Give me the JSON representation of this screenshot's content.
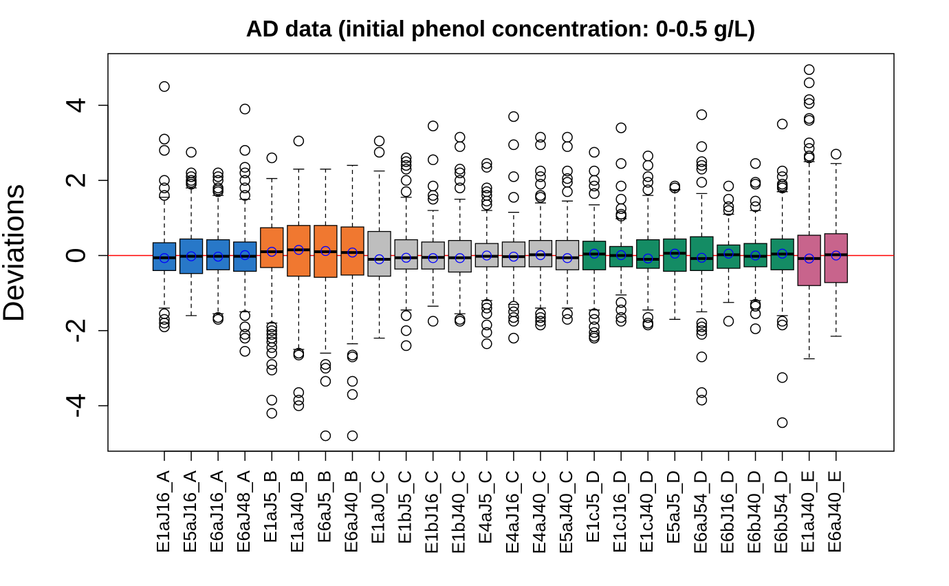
{
  "chart_data": {
    "type": "boxplot",
    "title": "AD data (initial phenol concentration: 0-0.5 g/L)",
    "ylabel": "Deviations",
    "xlabel": "",
    "ylim": [
      -5.2,
      5.4
    ],
    "yticks": [
      -4,
      -2,
      0,
      2,
      4
    ],
    "ytick_labels": [
      "-4",
      "-2",
      "0",
      "2",
      "4"
    ],
    "reference_line": {
      "y": 0,
      "color": "#ff0000"
    },
    "mean_marker_color": "#0000ff",
    "group_colors": {
      "A": "#2878c8",
      "B": "#f07830",
      "C": "#bebebe",
      "D": "#148c64",
      "E": "#c8648c"
    },
    "boxes": [
      {
        "label": "E1aJ16_A",
        "group": "A",
        "q1": -0.4,
        "median": -0.06,
        "q3": 0.34,
        "whisker_low": -1.4,
        "whisker_high": 1.55,
        "mean": -0.07,
        "outliers": [
          4.5,
          3.1,
          2.8,
          2.0,
          1.8,
          1.6,
          -1.55,
          -1.7,
          -1.8,
          -1.9
        ]
      },
      {
        "label": "E5aJ16_A",
        "group": "A",
        "q1": -0.48,
        "median": -0.02,
        "q3": 0.44,
        "whisker_low": -1.6,
        "whisker_high": 1.8,
        "mean": -0.02,
        "outliers": [
          2.75,
          2.2,
          2.1,
          2.0,
          1.95,
          1.9
        ]
      },
      {
        "label": "E6aJ16_A",
        "group": "A",
        "q1": -0.38,
        "median": -0.02,
        "q3": 0.42,
        "whisker_low": -1.55,
        "whisker_high": 1.6,
        "mean": -0.03,
        "outliers": [
          2.2,
          2.1,
          2.0,
          1.8,
          1.75,
          1.7,
          -1.65,
          -1.7
        ]
      },
      {
        "label": "E6aJ48_A",
        "group": "A",
        "q1": -0.42,
        "median": -0.02,
        "q3": 0.36,
        "whisker_low": -1.5,
        "whisker_high": 1.5,
        "mean": 0.01,
        "outliers": [
          3.9,
          2.8,
          2.35,
          2.2,
          2.0,
          1.8,
          1.6,
          -1.6,
          -1.9,
          -2.1,
          -2.2,
          -2.55
        ]
      },
      {
        "label": "E1aJ5_B",
        "group": "B",
        "q1": -0.32,
        "median": 0.1,
        "q3": 0.74,
        "whisker_low": -1.8,
        "whisker_high": 2.05,
        "mean": 0.1,
        "outliers": [
          2.6,
          -1.9,
          -2.0,
          -2.1,
          -2.2,
          -2.3,
          -2.45,
          -2.6,
          -2.9,
          -3.05,
          -3.85,
          -4.2
        ]
      },
      {
        "label": "E1aJ40_B",
        "group": "B",
        "q1": -0.55,
        "median": 0.15,
        "q3": 0.8,
        "whisker_low": -2.5,
        "whisker_high": 2.3,
        "mean": 0.15,
        "outliers": [
          3.05,
          -2.6,
          -2.65,
          -3.65,
          -3.85,
          -4.0
        ]
      },
      {
        "label": "E6aJ5_B",
        "group": "B",
        "q1": -0.58,
        "median": 0.1,
        "q3": 0.8,
        "whisker_low": -2.6,
        "whisker_high": 2.3,
        "mean": 0.12,
        "outliers": [
          -2.9,
          -3.0,
          -3.35,
          -4.8
        ]
      },
      {
        "label": "E6aJ40_B",
        "group": "B",
        "q1": -0.52,
        "median": 0.08,
        "q3": 0.76,
        "whisker_low": -2.35,
        "whisker_high": 2.4,
        "mean": 0.08,
        "outliers": [
          -2.65,
          -2.7,
          -3.35,
          -3.7,
          -4.8
        ]
      },
      {
        "label": "E1aJ0_C",
        "group": "C",
        "q1": -0.55,
        "median": -0.1,
        "q3": 0.64,
        "whisker_low": -2.2,
        "whisker_high": 2.25,
        "mean": -0.1,
        "outliers": [
          3.05,
          2.75
        ]
      },
      {
        "label": "E1bJ5_C",
        "group": "C",
        "q1": -0.36,
        "median": -0.06,
        "q3": 0.42,
        "whisker_low": -1.45,
        "whisker_high": 1.55,
        "mean": -0.06,
        "outliers": [
          2.6,
          2.5,
          2.4,
          2.3,
          2.0,
          1.7,
          -1.6,
          -2.0,
          -2.4
        ]
      },
      {
        "label": "E1bJ16_C",
        "group": "C",
        "q1": -0.36,
        "median": -0.05,
        "q3": 0.36,
        "whisker_low": -1.35,
        "whisker_high": 1.2,
        "mean": -0.07,
        "outliers": [
          3.45,
          2.55,
          1.85,
          1.6,
          1.5,
          -1.75
        ]
      },
      {
        "label": "E1bJ40_C",
        "group": "C",
        "q1": -0.44,
        "median": -0.06,
        "q3": 0.4,
        "whisker_low": -1.55,
        "whisker_high": 1.5,
        "mean": -0.07,
        "outliers": [
          3.15,
          2.9,
          2.3,
          2.2,
          2.0,
          1.8,
          -1.7,
          -1.75
        ]
      },
      {
        "label": "E4aJ5_C",
        "group": "C",
        "q1": -0.3,
        "median": -0.02,
        "q3": 0.32,
        "whisker_low": -1.2,
        "whisker_high": 1.2,
        "mean": 0.0,
        "outliers": [
          2.45,
          2.35,
          1.8,
          1.7,
          1.6,
          1.45,
          1.35,
          -1.3,
          -1.4,
          -1.55,
          -1.85,
          -2.05,
          -2.35
        ]
      },
      {
        "label": "E4aJ16_C",
        "group": "C",
        "q1": -0.3,
        "median": -0.03,
        "q3": 0.36,
        "whisker_low": -1.3,
        "whisker_high": 1.15,
        "mean": -0.03,
        "outliers": [
          3.7,
          2.95,
          2.1,
          1.55,
          -1.35,
          -1.5,
          -1.65,
          -1.75,
          -2.2
        ]
      },
      {
        "label": "E4aJ40_C",
        "group": "C",
        "q1": -0.3,
        "median": 0.02,
        "q3": 0.4,
        "whisker_low": -1.4,
        "whisker_high": 1.4,
        "mean": 0.01,
        "outliers": [
          3.15,
          2.95,
          2.25,
          2.1,
          1.9,
          1.6,
          1.55,
          -1.55,
          -1.65,
          -1.75,
          -1.85
        ]
      },
      {
        "label": "E5aJ40_C",
        "group": "C",
        "q1": -0.38,
        "median": -0.06,
        "q3": 0.4,
        "whisker_low": -1.4,
        "whisker_high": 1.45,
        "mean": -0.07,
        "outliers": [
          3.15,
          2.9,
          2.25,
          2.05,
          1.95,
          1.7,
          -1.55,
          -1.7
        ]
      },
      {
        "label": "E1cJ5_D",
        "group": "D",
        "q1": -0.38,
        "median": 0.04,
        "q3": 0.38,
        "whisker_low": -1.45,
        "whisker_high": 1.35,
        "mean": 0.05,
        "outliers": [
          2.75,
          2.25,
          2.0,
          1.85,
          1.65,
          -1.55,
          -1.7,
          -1.9,
          -2.05,
          -2.15,
          -2.2
        ]
      },
      {
        "label": "E1cJ16_D",
        "group": "D",
        "q1": -0.3,
        "median": 0.0,
        "q3": 0.24,
        "whisker_low": -1.05,
        "whisker_high": 0.98,
        "mean": 0.01,
        "outliers": [
          3.4,
          2.45,
          1.85,
          1.5,
          1.25,
          1.1,
          1.05,
          -1.25,
          -1.45,
          -1.65,
          -1.75
        ]
      },
      {
        "label": "E1cJ40_D",
        "group": "D",
        "q1": -0.34,
        "median": -0.1,
        "q3": 0.42,
        "whisker_low": -1.45,
        "whisker_high": 1.6,
        "mean": -0.08,
        "outliers": [
          2.65,
          2.4,
          2.1,
          1.95,
          1.75,
          -1.65,
          -1.8,
          -1.85
        ]
      },
      {
        "label": "E5aJ5_D",
        "group": "D",
        "q1": -0.42,
        "median": 0.06,
        "q3": 0.44,
        "whisker_low": -1.7,
        "whisker_high": 1.75,
        "mean": 0.05,
        "outliers": [
          1.85,
          1.8
        ]
      },
      {
        "label": "E6aJ54_D",
        "group": "D",
        "q1": -0.4,
        "median": -0.08,
        "q3": 0.5,
        "whisker_low": -1.5,
        "whisker_high": 1.65,
        "mean": -0.06,
        "outliers": [
          3.75,
          2.9,
          2.5,
          2.4,
          2.3,
          1.95,
          -1.8,
          -1.9,
          -2.0,
          -2.1,
          -2.7,
          -3.65,
          -3.85
        ]
      },
      {
        "label": "E6bJ16_D",
        "group": "D",
        "q1": -0.34,
        "median": 0.02,
        "q3": 0.28,
        "whisker_low": -1.25,
        "whisker_high": 1.1,
        "mean": 0.05,
        "outliers": [
          1.85,
          1.5,
          1.3,
          1.2,
          -1.75
        ]
      },
      {
        "label": "E6bJ40_D",
        "group": "D",
        "q1": -0.3,
        "median": -0.02,
        "q3": 0.32,
        "whisker_low": -1.2,
        "whisker_high": 1.2,
        "mean": 0.0,
        "outliers": [
          2.45,
          1.95,
          1.9,
          1.45,
          1.3,
          -1.3,
          -1.35,
          -1.55,
          -1.95
        ]
      },
      {
        "label": "E6bJ54_D",
        "group": "D",
        "q1": -0.38,
        "median": 0.04,
        "q3": 0.44,
        "whisker_low": -1.6,
        "whisker_high": 1.7,
        "mean": 0.05,
        "outliers": [
          3.5,
          2.25,
          2.1,
          1.9,
          1.85,
          1.8,
          -1.75,
          -1.85,
          -3.25,
          -4.45
        ]
      },
      {
        "label": "E1aJ40_E",
        "group": "E",
        "q1": -0.8,
        "median": -0.08,
        "q3": 0.54,
        "whisker_low": -2.75,
        "whisker_high": 2.5,
        "mean": -0.08,
        "outliers": [
          4.95,
          4.6,
          4.15,
          4.05,
          3.65,
          3.6,
          3.0,
          2.85,
          2.65,
          2.6
        ]
      },
      {
        "label": "E6aJ40_E",
        "group": "E",
        "q1": -0.72,
        "median": 0.02,
        "q3": 0.58,
        "whisker_low": -2.15,
        "whisker_high": 2.45,
        "mean": 0.0,
        "outliers": [
          2.7
        ]
      }
    ]
  }
}
